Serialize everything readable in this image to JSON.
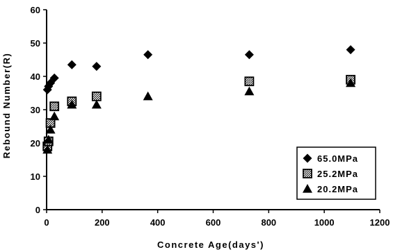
{
  "chart_data": {
    "type": "scatter",
    "xlabel": "Concrete Age(days')",
    "ylabel": "Rebound Number(R)",
    "xlim": [
      0,
      1200
    ],
    "ylim": [
      0,
      60
    ],
    "x_ticks": [
      0,
      200,
      400,
      600,
      800,
      1000,
      1200
    ],
    "y_ticks": [
      0,
      10,
      20,
      30,
      40,
      50,
      60
    ],
    "grid": false,
    "legend_position": "bottom-right",
    "series": [
      {
        "name": "65.0MPa",
        "marker": "diamond",
        "color": "#000000",
        "points": [
          [
            3,
            36
          ],
          [
            7,
            37
          ],
          [
            14,
            38
          ],
          [
            28,
            39.5
          ],
          [
            91,
            43.5
          ],
          [
            180,
            43
          ],
          [
            365,
            46.5
          ],
          [
            730,
            46.5
          ],
          [
            1095,
            48
          ]
        ]
      },
      {
        "name": "25.2MPa",
        "marker": "hatched-square",
        "color": "#000000",
        "points": [
          [
            3,
            19
          ],
          [
            7,
            20.5
          ],
          [
            14,
            26
          ],
          [
            28,
            31
          ],
          [
            91,
            32.5
          ],
          [
            180,
            34
          ],
          [
            730,
            38.5
          ],
          [
            1095,
            39
          ]
        ]
      },
      {
        "name": "20.2MPa",
        "marker": "triangle",
        "color": "#000000",
        "points": [
          [
            3,
            18
          ],
          [
            7,
            21
          ],
          [
            14,
            24
          ],
          [
            28,
            28
          ],
          [
            91,
            31.5
          ],
          [
            180,
            31.5
          ],
          [
            365,
            34
          ],
          [
            730,
            35.5
          ],
          [
            1095,
            38
          ]
        ]
      }
    ]
  }
}
